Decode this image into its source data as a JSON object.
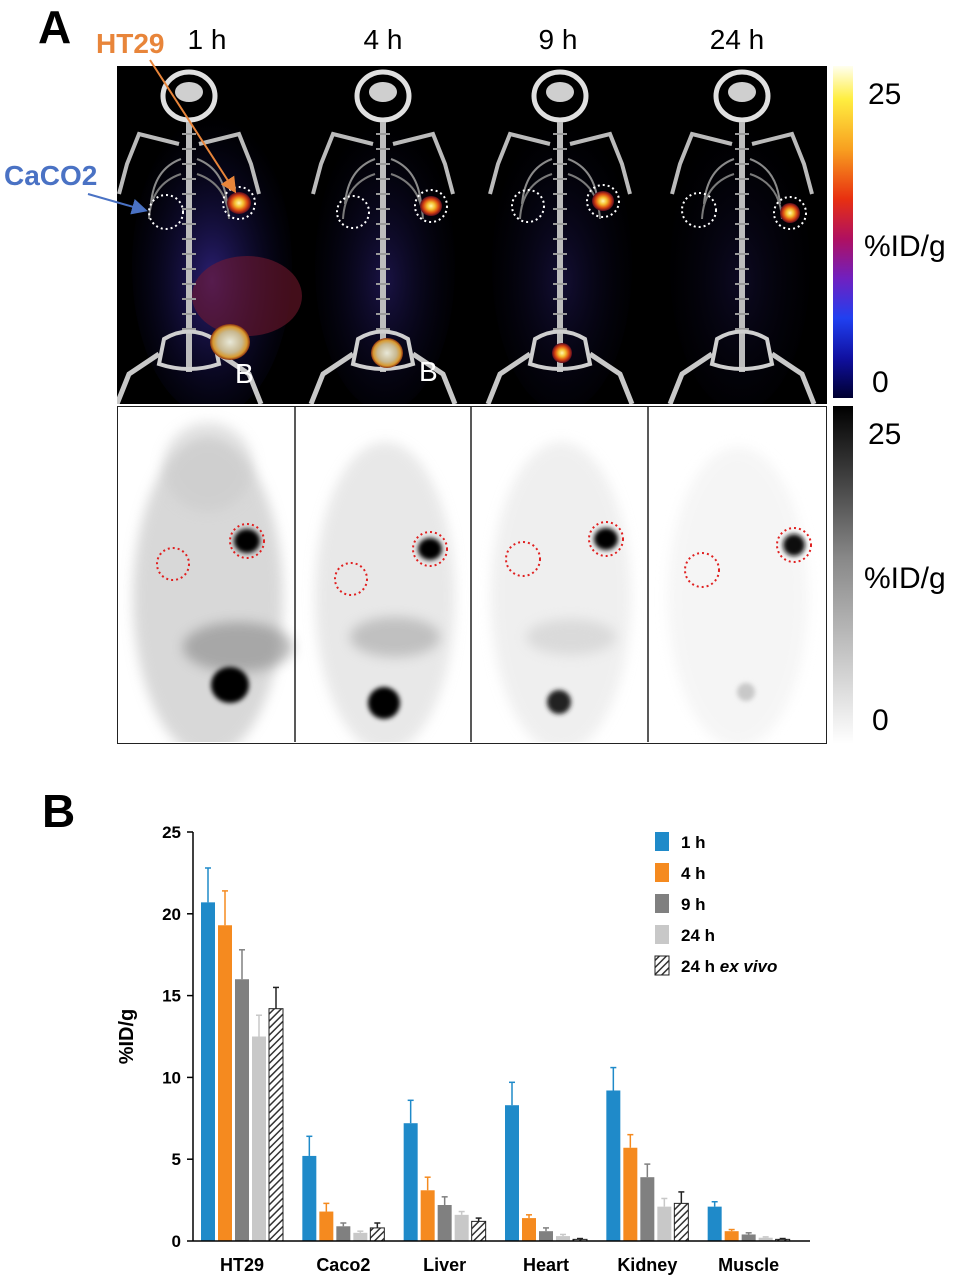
{
  "panel_a": {
    "letter": "A",
    "time_labels": [
      "1 h",
      "4 h",
      "9 h",
      "24 h"
    ],
    "annotations": {
      "ht29": "HT29",
      "caco2": "CaCO2",
      "bladder": "B"
    },
    "colors": {
      "ht29": "#e8853a",
      "caco2": "#4a72c4"
    },
    "pet_colorbar": {
      "max": "25",
      "unit": "%ID/g",
      "min": "0"
    },
    "gray_colorbar": {
      "max": "25",
      "unit": "%ID/g",
      "min": "0"
    }
  },
  "panel_b": {
    "letter": "B",
    "chart_data": {
      "type": "bar",
      "ylabel": "%ID/g",
      "ylim": [
        0,
        25
      ],
      "yticks": [
        0,
        5,
        10,
        15,
        20,
        25
      ],
      "categories": [
        "HT29",
        "Caco2",
        "Liver",
        "Heart",
        "Kidney",
        "Muscle"
      ],
      "legend_position": "top-right",
      "series": [
        {
          "name": "1 h",
          "color": "#1f8ac9",
          "values": [
            20.7,
            5.2,
            7.2,
            8.3,
            9.2,
            2.1
          ],
          "errors": [
            2.1,
            1.2,
            1.4,
            1.4,
            1.4,
            0.3
          ]
        },
        {
          "name": "4 h",
          "color": "#f58a1f",
          "values": [
            19.3,
            1.8,
            3.1,
            1.4,
            5.7,
            0.6
          ],
          "errors": [
            2.1,
            0.5,
            0.8,
            0.2,
            0.8,
            0.1
          ]
        },
        {
          "name": "9 h",
          "color": "#808080",
          "values": [
            16.0,
            0.9,
            2.2,
            0.6,
            3.9,
            0.4
          ],
          "errors": [
            1.8,
            0.2,
            0.5,
            0.2,
            0.8,
            0.1
          ]
        },
        {
          "name": "24 h",
          "color": "#c8c8c8",
          "values": [
            12.5,
            0.5,
            1.6,
            0.3,
            2.1,
            0.2
          ],
          "errors": [
            1.3,
            0.1,
            0.2,
            0.1,
            0.5,
            0.05
          ]
        },
        {
          "name": "24 h ex vivo",
          "name_plain": "24 h",
          "name_italic": "ex vivo",
          "hatched": true,
          "color": "#555555",
          "values": [
            14.2,
            0.8,
            1.2,
            0.1,
            2.3,
            0.1
          ],
          "errors": [
            1.3,
            0.3,
            0.2,
            0.05,
            0.7,
            0.05
          ]
        }
      ]
    }
  }
}
